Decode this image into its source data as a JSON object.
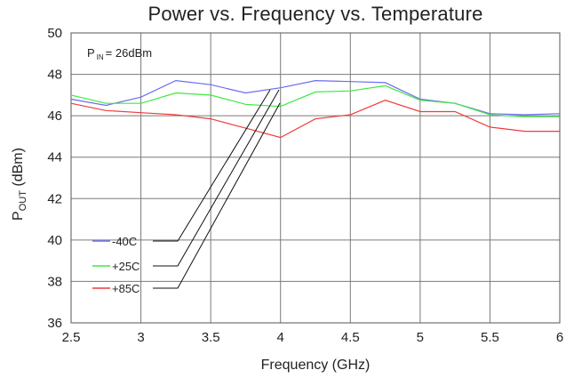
{
  "chart_data": {
    "type": "line",
    "title": "Power vs. Frequency vs. Temperature",
    "xlabel": "Frequency (GHz)",
    "ylabel_main": "P",
    "ylabel_sub": "OUT",
    "ylabel_units": " (dBm)",
    "annotation_main": "P",
    "annotation_sub": "IN",
    "annotation_value": "= 26dBm",
    "xlim": [
      2.5,
      6
    ],
    "ylim": [
      36,
      50
    ],
    "xticks": [
      "2.5",
      "3",
      "3.5",
      "4",
      "4.5",
      "5",
      "5.5",
      "6"
    ],
    "yticks": [
      "36",
      "38",
      "40",
      "42",
      "44",
      "46",
      "48",
      "50"
    ],
    "grid": true,
    "legend_position": "bottom-left",
    "x": [
      2.5,
      2.75,
      3,
      3.25,
      3.5,
      3.75,
      4,
      4.25,
      4.5,
      4.75,
      5,
      5.25,
      5.5,
      5.75,
      6
    ],
    "series": [
      {
        "name": "-40C",
        "color": "#6b6bf2",
        "values": [
          46.8,
          46.5,
          46.9,
          47.7,
          47.5,
          47.1,
          47.35,
          47.7,
          47.65,
          47.6,
          46.8,
          46.6,
          46.1,
          46.05,
          46.1
        ]
      },
      {
        "name": "+25C",
        "color": "#3dea3d",
        "values": [
          47.0,
          46.6,
          46.6,
          47.1,
          47.0,
          46.55,
          46.45,
          47.15,
          47.2,
          47.45,
          46.75,
          46.6,
          46.05,
          45.95,
          45.95
        ]
      },
      {
        "name": "+85C",
        "color": "#f03c3c",
        "values": [
          46.6,
          46.25,
          46.15,
          46.05,
          45.85,
          45.4,
          44.95,
          45.85,
          46.05,
          46.75,
          46.2,
          46.2,
          45.45,
          45.25,
          45.25
        ]
      }
    ]
  }
}
